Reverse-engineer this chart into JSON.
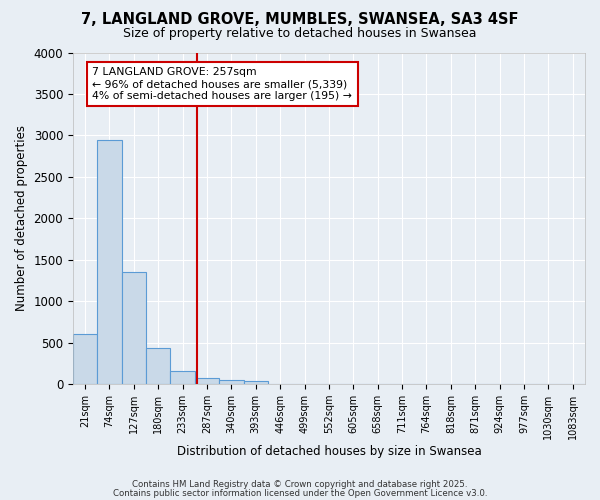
{
  "title": "7, LANGLAND GROVE, MUMBLES, SWANSEA, SA3 4SF",
  "subtitle": "Size of property relative to detached houses in Swansea",
  "xlabel": "Distribution of detached houses by size in Swansea",
  "ylabel": "Number of detached properties",
  "bin_labels": [
    "21sqm",
    "74sqm",
    "127sqm",
    "180sqm",
    "233sqm",
    "287sqm",
    "340sqm",
    "393sqm",
    "446sqm",
    "499sqm",
    "552sqm",
    "605sqm",
    "658sqm",
    "711sqm",
    "764sqm",
    "818sqm",
    "871sqm",
    "924sqm",
    "977sqm",
    "1030sqm",
    "1083sqm"
  ],
  "bar_values": [
    600,
    2950,
    1350,
    430,
    160,
    75,
    45,
    30,
    5,
    2,
    1,
    0,
    0,
    0,
    0,
    0,
    0,
    0,
    0,
    0,
    0
  ],
  "bar_color": "#c9d9e8",
  "bar_edge_color": "#5b9bd5",
  "ylim": [
    0,
    4000
  ],
  "yticks": [
    0,
    500,
    1000,
    1500,
    2000,
    2500,
    3000,
    3500,
    4000
  ],
  "red_line_x": 4.6,
  "annotation_text": "7 LANGLAND GROVE: 257sqm\n← 96% of detached houses are smaller (5,339)\n4% of semi-detached houses are larger (195) →",
  "annotation_box_color": "#ffffff",
  "annotation_border_color": "#cc0000",
  "vline_color": "#cc0000",
  "background_color": "#e8eef4",
  "grid_color": "#ffffff",
  "footer_line1": "Contains HM Land Registry data © Crown copyright and database right 2025.",
  "footer_line2": "Contains public sector information licensed under the Open Government Licence v3.0."
}
